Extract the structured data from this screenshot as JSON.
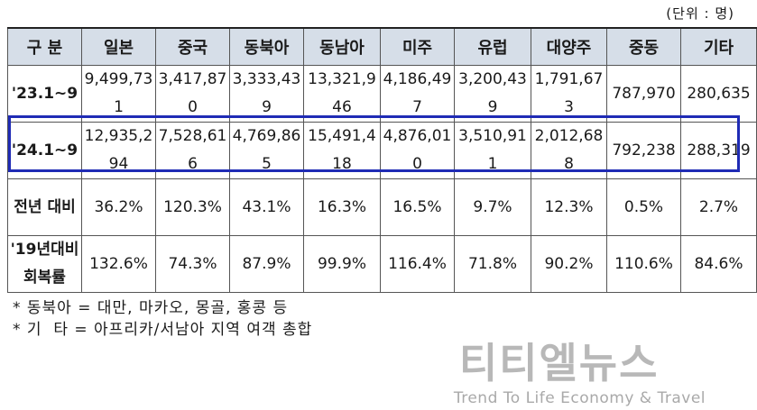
{
  "unit_label": "(단위 : 명)",
  "table": {
    "headers": [
      "구 분",
      "일본",
      "중국",
      "동북아",
      "동남아",
      "미주",
      "유럽",
      "대양주",
      "중동",
      "기타"
    ],
    "rows": [
      {
        "label": "'23.1~9",
        "cells": [
          "9,499,731",
          "3,417,870",
          "3,333,439",
          "13,321,946",
          "4,186,497",
          "3,200,439",
          "1,791,673",
          "787,970",
          "280,635"
        ]
      },
      {
        "label": "'24.1~9",
        "cells": [
          "12,935,294",
          "7,528,616",
          "4,769,865",
          "15,491,418",
          "4,876,010",
          "3,510,911",
          "2,012,688",
          "792,238",
          "288,319"
        ]
      },
      {
        "label": "전년 대비",
        "cells": [
          "36.2%",
          "120.3%",
          "43.1%",
          "16.3%",
          "16.5%",
          "9.7%",
          "12.3%",
          "0.5%",
          "2.7%"
        ]
      },
      {
        "label": "'19년대비 회복률",
        "cells": [
          "132.6%",
          "74.3%",
          "87.9%",
          "99.9%",
          "116.4%",
          "71.8%",
          "90.2%",
          "110.6%",
          "84.6%"
        ]
      }
    ]
  },
  "notes": [
    "* 동북아 = 대만, 마카오, 몽골, 홍콩 등",
    "* 기  타 = 아프리카/서남아 지역 여객 총합"
  ],
  "logo": {
    "name_ko": "티티엘뉴스",
    "tagline": "Trend To Life Economy & Travel"
  }
}
